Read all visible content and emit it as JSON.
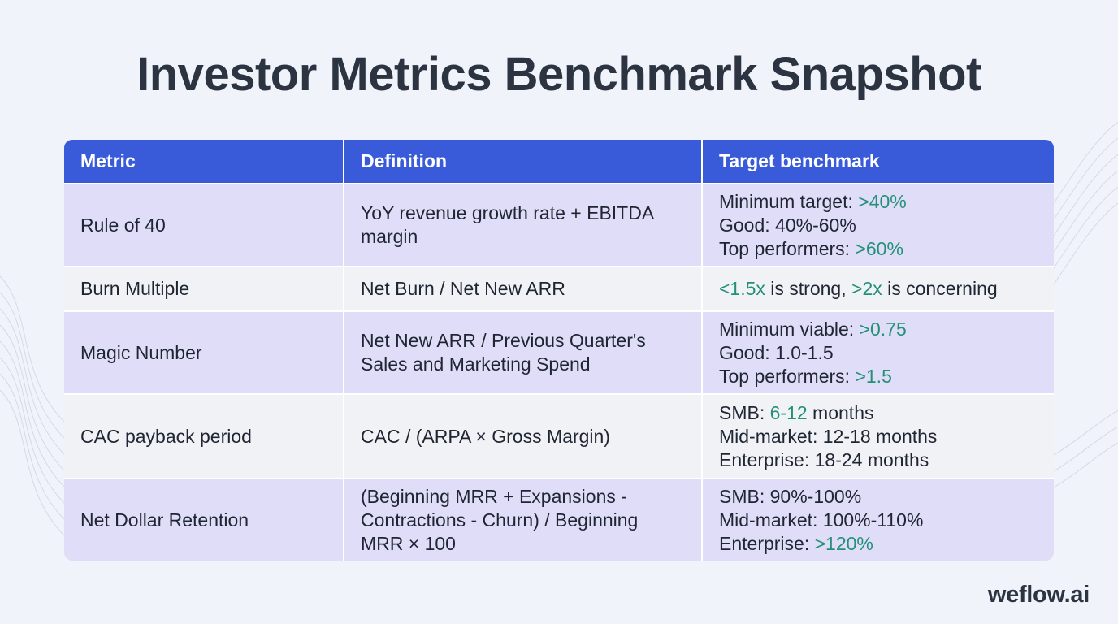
{
  "page": {
    "title": "Investor Metrics Benchmark Snapshot",
    "brand": "weflow.ai"
  },
  "table": {
    "headers": [
      "Metric",
      "Definition",
      "Target benchmark"
    ],
    "rows": [
      {
        "metric": "Rule of 40",
        "definition": "YoY revenue growth rate + EBITDA margin",
        "benchmark": {
          "line1_text": "Minimum target: ",
          "line1_hl": ">40%",
          "line2_text": "Good: 40%-60%",
          "line3_text": "Top performers: ",
          "line3_hl": ">60%"
        }
      },
      {
        "metric": "Burn Multiple",
        "definition": "Net Burn / Net New ARR",
        "benchmark": {
          "hl1": "<1.5x",
          "text1": " is strong, ",
          "hl2": ">2x",
          "text2": " is concerning"
        }
      },
      {
        "metric": "Magic Number",
        "definition": "Net New ARR / Previous Quarter's Sales and Marketing Spend",
        "benchmark": {
          "line1_text": "Minimum viable: ",
          "line1_hl": ">0.75",
          "line2_text": "Good: 1.0-1.5",
          "line3_text": "Top performers: ",
          "line3_hl": ">1.5"
        }
      },
      {
        "metric": "CAC payback period",
        "definition": "CAC / (ARPA × Gross Margin)",
        "benchmark": {
          "line1_text": "SMB: ",
          "line1_hl": "6-12",
          "line1_after": " months",
          "line2_text": "Mid-market: 12-18 months",
          "line3_text": "Enterprise: 18-24 months"
        }
      },
      {
        "metric": "Net Dollar Retention",
        "definition": "(Beginning MRR + Expansions - Contractions - Churn) / Beginning MRR × 100",
        "benchmark": {
          "line1_text": "SMB: 90%-100%",
          "line2_text": "Mid-market: 100%-110%",
          "line3_text": "Enterprise: ",
          "line3_hl": ">120%"
        }
      }
    ]
  },
  "colors": {
    "header_bg": "#3a5bd9",
    "row_purple": "#dfddf7",
    "row_grey": "#f1f2f6",
    "highlight": "#23917a",
    "title": "#2b3440"
  }
}
